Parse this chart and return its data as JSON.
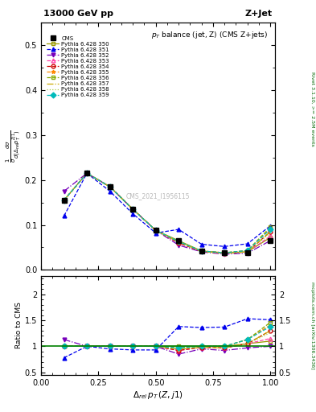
{
  "title_top": "13000 GeV pp",
  "title_right": "Z+Jet",
  "plot_title": "p_{T} balance (jet, Z) (CMS Z+jets)",
  "xlabel": "Δ_{rel} p_{T} (Z,j1)",
  "ylabel_main": "1/sigma dsigma/d(Delta_rel p_T^Zj1)",
  "ylabel_ratio": "Ratio to CMS",
  "watermark": "CMS_2021_I1956115",
  "right_label_top": "Rivet 3.1.10, >= 2.5M events",
  "right_label_bot": "mcplots.cern.ch [arXiv:1306.3436]",
  "xlim": [
    0.0,
    1.02
  ],
  "ylim_main": [
    0.0,
    0.55
  ],
  "ylim_ratio": [
    0.45,
    2.35
  ],
  "x_data": [
    0.1,
    0.2,
    0.3,
    0.4,
    0.5,
    0.6,
    0.7,
    0.8,
    0.9,
    1.0
  ],
  "cms_y": [
    0.155,
    0.215,
    0.185,
    0.135,
    0.088,
    0.065,
    0.042,
    0.038,
    0.038,
    0.065
  ],
  "series": [
    {
      "label": "Pythia 6.428 350",
      "color": "#999900",
      "linestyle": "-",
      "marker": "s",
      "markerfill": "none",
      "y": [
        0.155,
        0.215,
        0.185,
        0.135,
        0.088,
        0.065,
        0.042,
        0.038,
        0.04,
        0.072
      ],
      "ratio": [
        1.0,
        1.0,
        1.0,
        1.0,
        1.0,
        1.0,
        1.0,
        1.0,
        1.05,
        1.1
      ]
    },
    {
      "label": "Pythia 6.428 351",
      "color": "#0000ee",
      "linestyle": "--",
      "marker": "^",
      "markerfill": "full",
      "y": [
        0.12,
        0.215,
        0.175,
        0.125,
        0.082,
        0.09,
        0.057,
        0.052,
        0.058,
        0.098
      ],
      "ratio": [
        0.78,
        1.0,
        0.95,
        0.93,
        0.93,
        1.38,
        1.36,
        1.37,
        1.53,
        1.51
      ]
    },
    {
      "label": "Pythia 6.428 352",
      "color": "#7700bb",
      "linestyle": "-.",
      "marker": "v",
      "markerfill": "full",
      "y": [
        0.175,
        0.215,
        0.185,
        0.135,
        0.088,
        0.055,
        0.04,
        0.035,
        0.037,
        0.065
      ],
      "ratio": [
        1.13,
        1.0,
        1.0,
        1.0,
        1.0,
        0.85,
        0.95,
        0.92,
        0.97,
        1.0
      ]
    },
    {
      "label": "Pythia 6.428 353",
      "color": "#ff44aa",
      "linestyle": "--",
      "marker": "^",
      "markerfill": "none",
      "y": [
        0.155,
        0.215,
        0.185,
        0.135,
        0.088,
        0.06,
        0.041,
        0.037,
        0.04,
        0.075
      ],
      "ratio": [
        1.0,
        1.0,
        1.0,
        1.0,
        1.0,
        0.92,
        0.98,
        0.97,
        1.05,
        1.15
      ]
    },
    {
      "label": "Pythia 6.428 354",
      "color": "#cc0000",
      "linestyle": "--",
      "marker": "o",
      "markerfill": "none",
      "y": [
        0.155,
        0.215,
        0.185,
        0.135,
        0.088,
        0.06,
        0.041,
        0.037,
        0.04,
        0.085
      ],
      "ratio": [
        1.0,
        1.0,
        1.0,
        1.0,
        1.0,
        0.92,
        0.98,
        0.97,
        1.05,
        1.3
      ]
    },
    {
      "label": "Pythia 6.428 355",
      "color": "#ff8800",
      "linestyle": "--",
      "marker": "*",
      "markerfill": "full",
      "y": [
        0.155,
        0.215,
        0.185,
        0.135,
        0.088,
        0.062,
        0.042,
        0.038,
        0.043,
        0.092
      ],
      "ratio": [
        1.0,
        1.0,
        1.0,
        1.0,
        1.0,
        0.95,
        1.0,
        1.0,
        1.13,
        1.41
      ]
    },
    {
      "label": "Pythia 6.428 356",
      "color": "#88aa00",
      "linestyle": "--",
      "marker": "s",
      "markerfill": "none",
      "y": [
        0.155,
        0.215,
        0.185,
        0.135,
        0.088,
        0.063,
        0.042,
        0.038,
        0.043,
        0.095
      ],
      "ratio": [
        1.0,
        1.0,
        1.0,
        1.0,
        1.0,
        0.97,
        1.0,
        1.0,
        1.13,
        1.46
      ]
    },
    {
      "label": "Pythia 6.428 357",
      "color": "#ccaa00",
      "linestyle": "-.",
      "marker": null,
      "markerfill": "none",
      "y": [
        0.155,
        0.215,
        0.185,
        0.135,
        0.088,
        0.062,
        0.041,
        0.037,
        0.04,
        0.085
      ],
      "ratio": [
        1.0,
        1.0,
        1.0,
        1.0,
        1.0,
        0.95,
        0.98,
        0.97,
        1.05,
        1.3
      ]
    },
    {
      "label": "Pythia 6.428 358",
      "color": "#aacc44",
      "linestyle": ":",
      "marker": null,
      "markerfill": "none",
      "y": [
        0.155,
        0.215,
        0.185,
        0.135,
        0.088,
        0.062,
        0.041,
        0.037,
        0.04,
        0.082
      ],
      "ratio": [
        1.0,
        1.0,
        1.0,
        1.0,
        1.0,
        0.95,
        0.98,
        0.97,
        1.05,
        1.26
      ]
    },
    {
      "label": "Pythia 6.428 359",
      "color": "#00bbbb",
      "linestyle": "--",
      "marker": "D",
      "markerfill": "full",
      "y": [
        0.155,
        0.215,
        0.185,
        0.135,
        0.088,
        0.063,
        0.042,
        0.038,
        0.043,
        0.09
      ],
      "ratio": [
        1.0,
        1.0,
        1.0,
        1.0,
        1.0,
        0.97,
        1.0,
        1.0,
        1.13,
        1.38
      ]
    }
  ]
}
